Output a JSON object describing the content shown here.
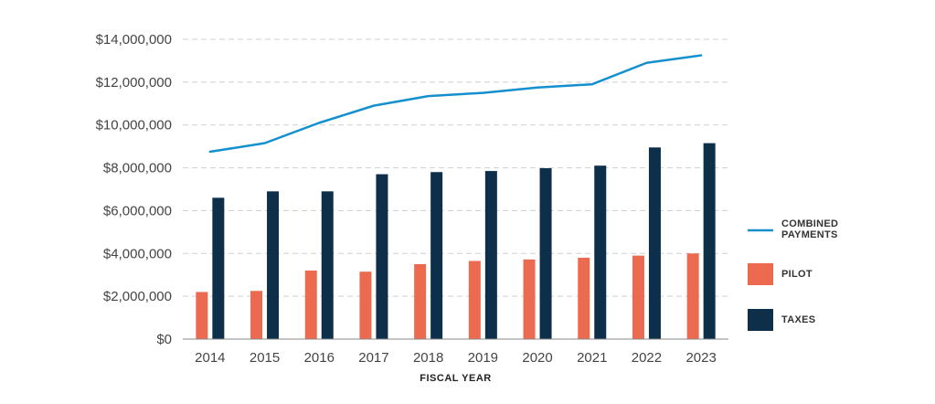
{
  "chart_data": {
    "type": "bar",
    "title": "",
    "xlabel": "FISCAL  YEAR",
    "ylabel": "",
    "ylim": [
      0,
      14000000
    ],
    "y_ticks": [
      0,
      2000000,
      4000000,
      6000000,
      8000000,
      10000000,
      12000000,
      14000000
    ],
    "y_tick_labels": [
      "$0",
      "$2,000,000",
      "$4,000,000",
      "$6,000,000",
      "$8,000,000",
      "$10,000,000",
      "$12,000,000",
      "$14,000,000"
    ],
    "categories": [
      "2014",
      "2015",
      "2016",
      "2017",
      "2018",
      "2019",
      "2020",
      "2021",
      "2022",
      "2023"
    ],
    "grid": true,
    "legend_position": "right",
    "series": [
      {
        "name": "PILOT",
        "kind": "bar",
        "color": "#ec6a50",
        "values": [
          2200000,
          2250000,
          3200000,
          3150000,
          3500000,
          3650000,
          3720000,
          3800000,
          3900000,
          4000000
        ]
      },
      {
        "name": "TAXES",
        "kind": "bar",
        "color": "#0d2f4a",
        "values": [
          6600000,
          6900000,
          6900000,
          7700000,
          7800000,
          7850000,
          7980000,
          8100000,
          8950000,
          9150000
        ]
      },
      {
        "name": "COMBINED PAYMENTS",
        "kind": "line",
        "color": "#1490cf",
        "values": [
          8750000,
          9150000,
          10100000,
          10900000,
          11350000,
          11500000,
          11750000,
          11900000,
          12900000,
          13250000
        ]
      }
    ],
    "legend": [
      {
        "series": "COMBINED PAYMENTS",
        "lines": [
          "COMBINED",
          "PAYMENTS"
        ],
        "kind": "line",
        "color": "#1490cf"
      },
      {
        "series": "PILOT",
        "lines": [
          "PILOT"
        ],
        "kind": "bar",
        "color": "#ec6a50"
      },
      {
        "series": "TAXES",
        "lines": [
          "TAXES"
        ],
        "kind": "bar",
        "color": "#0d2f4a"
      }
    ]
  }
}
